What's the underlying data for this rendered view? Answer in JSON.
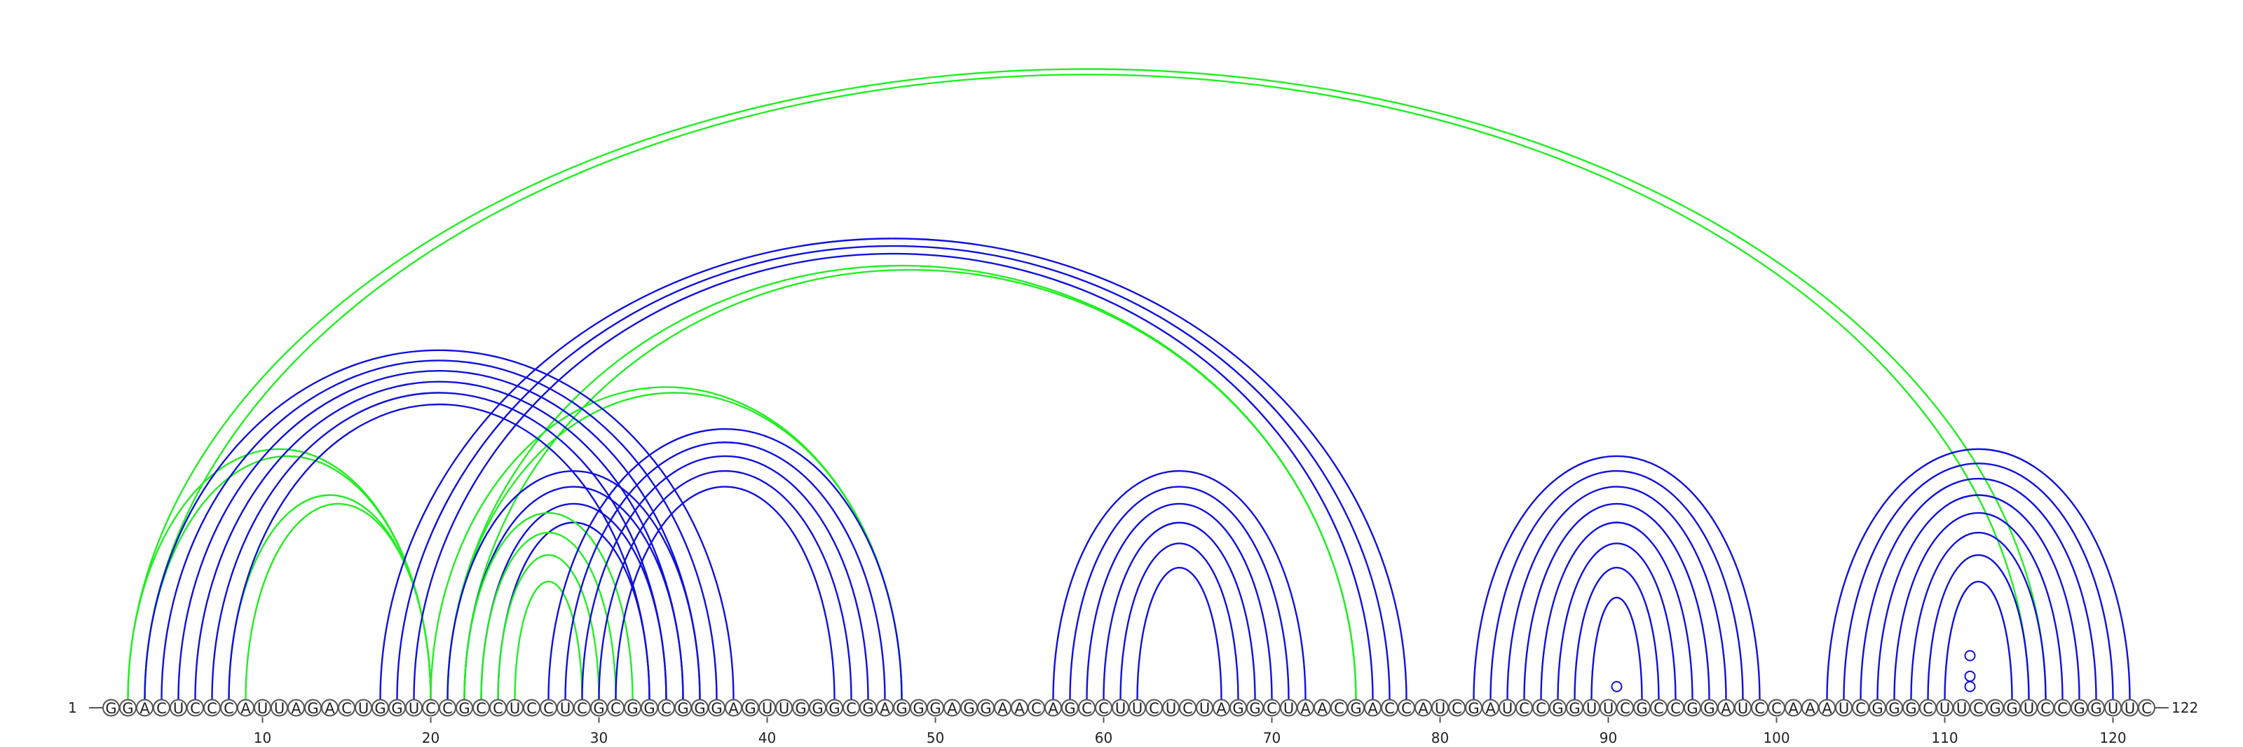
{
  "diagram": {
    "sequence": "GGACUCCCAUUAGACUGGUCCGCCUCCUCGCGGCGGGAGUUGGGCGAGGGAGGAACAGCCUUCUCUAGGCUAACGACCAUCGAUCCGGUUCGCCGGAUCCAAAUCGGGCUUCGGUCCGGUUC",
    "start_label": "1",
    "end_label": "122",
    "ticks": [
      10,
      20,
      30,
      40,
      50,
      60,
      70,
      80,
      90,
      100,
      110,
      120
    ],
    "colors": {
      "pair": "#1010dd",
      "alternate": "#22ee22"
    },
    "helices": [
      {
        "color": "alternate",
        "pairs": [
          [
            2,
            116
          ],
          [
            3,
            115
          ]
        ]
      },
      {
        "color": "alternate",
        "pairs": [
          [
            2,
            20
          ],
          [
            3,
            20
          ]
        ]
      },
      {
        "color": "alternate",
        "pairs": [
          [
            8,
            20
          ],
          [
            9,
            20
          ]
        ]
      },
      {
        "color": "alternate",
        "pairs": [
          [
            20,
            48
          ],
          [
            21,
            48
          ]
        ]
      },
      {
        "color": "alternate",
        "pairs": [
          [
            21,
            75
          ],
          [
            22,
            75
          ]
        ]
      },
      {
        "color": "pair",
        "pairs": [
          [
            3,
            38
          ],
          [
            4,
            37
          ],
          [
            5,
            36
          ],
          [
            6,
            35
          ],
          [
            7,
            34
          ],
          [
            8,
            33
          ]
        ]
      },
      {
        "color": "pair",
        "pairs": [
          [
            17,
            78
          ],
          [
            18,
            77
          ],
          [
            19,
            76
          ]
        ]
      },
      {
        "color": "pair",
        "pairs": [
          [
            21,
            36
          ],
          [
            22,
            35
          ],
          [
            23,
            34
          ],
          [
            24,
            33
          ]
        ]
      },
      {
        "color": "alternate",
        "pairs": [
          [
            22,
            32
          ],
          [
            23,
            31
          ],
          [
            24,
            30
          ],
          [
            25,
            29
          ]
        ]
      },
      {
        "color": "pair",
        "pairs": [
          [
            27,
            48
          ],
          [
            28,
            47
          ],
          [
            29,
            46
          ],
          [
            30,
            45
          ],
          [
            31,
            44
          ]
        ]
      },
      {
        "color": "pair",
        "pairs": [
          [
            57,
            72
          ],
          [
            58,
            71
          ],
          [
            59,
            70
          ],
          [
            60,
            69
          ],
          [
            61,
            68
          ],
          [
            62,
            67
          ]
        ]
      },
      {
        "color": "pair",
        "pairs": [
          [
            82,
            99
          ],
          [
            83,
            98
          ],
          [
            84,
            97
          ],
          [
            85,
            96
          ],
          [
            86,
            95
          ],
          [
            87,
            94
          ],
          [
            88,
            93
          ],
          [
            89,
            92
          ]
        ]
      },
      {
        "color": "pair",
        "pairs": [
          [
            103,
            121
          ],
          [
            104,
            120
          ],
          [
            105,
            119
          ],
          [
            106,
            118
          ],
          [
            107,
            117
          ],
          [
            108,
            116
          ],
          [
            109,
            115
          ],
          [
            110,
            114
          ]
        ]
      }
    ],
    "loop_markers": [
      {
        "position": 90.5,
        "level": 1
      },
      {
        "position": 111.5,
        "level": 1
      },
      {
        "position": 111.5,
        "level": 2
      },
      {
        "position": 111.5,
        "level": 4
      }
    ]
  }
}
